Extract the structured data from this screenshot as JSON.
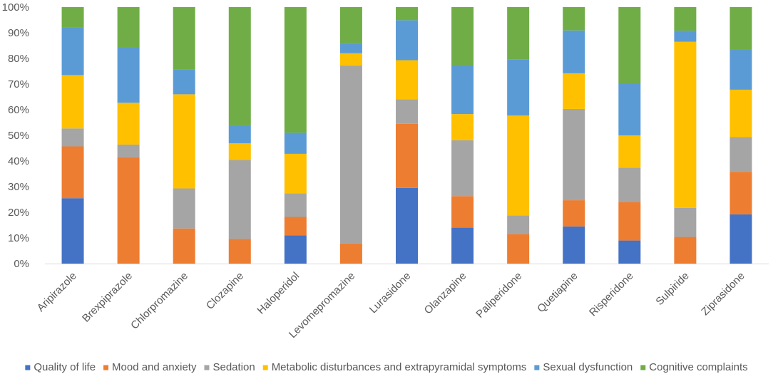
{
  "chart_data": {
    "type": "bar",
    "stacked": true,
    "title": "",
    "xlabel": "",
    "ylabel": "",
    "ylim": [
      0,
      100
    ],
    "yticks": [
      "0%",
      "10%",
      "20%",
      "30%",
      "40%",
      "50%",
      "60%",
      "70%",
      "80%",
      "90%",
      "100%"
    ],
    "grid": false,
    "legend_position": "bottom",
    "categories": [
      "Aripirazole",
      "Brexpiprazole",
      "Chlorpromazine",
      "Clozapine",
      "Haloperidol",
      "Levomepromazine",
      "Lurasidone",
      "Olanzapine",
      "Paliperidone",
      "Quetiapine",
      "Risperidone",
      "Sulpiride",
      "Ziprasidone"
    ],
    "series": [
      {
        "name": "Quality of life",
        "color": "#4472C4",
        "values": [
          25.5,
          0,
          0,
          0,
          11,
          0,
          29.5,
          14,
          0,
          14.5,
          9,
          0,
          19.2
        ]
      },
      {
        "name": "Mood and anxiety",
        "color": "#ED7D31",
        "values": [
          20.2,
          41.5,
          13.7,
          9.6,
          7.2,
          7.8,
          25,
          12.3,
          11.5,
          10.2,
          15,
          10.4,
          16.6
        ]
      },
      {
        "name": "Sedation",
        "color": "#A5A5A5",
        "values": [
          7,
          4.9,
          15.6,
          30.8,
          9.2,
          69.4,
          9.6,
          21.8,
          7.3,
          35.6,
          13.4,
          11.3,
          13.5
        ]
      },
      {
        "name": "Metabolic disturbances and extrapyramidal symptoms",
        "color": "#FFC000",
        "values": [
          20.8,
          16.3,
          36.7,
          6.5,
          15.4,
          4.8,
          15.2,
          10.2,
          38.9,
          13.9,
          12.6,
          64.8,
          18.5
        ]
      },
      {
        "name": "Sexual dysfunction",
        "color": "#5B9BD5",
        "values": [
          18.7,
          21.6,
          9.8,
          7,
          8.2,
          4,
          15.6,
          19.2,
          21.8,
          16.7,
          20,
          4.3,
          15.8
        ]
      },
      {
        "name": "Cognitive complaints",
        "color": "#70AD47",
        "values": [
          7.8,
          15.7,
          24.2,
          46.1,
          49,
          14,
          5.1,
          22.5,
          20.5,
          9.1,
          30,
          9.2,
          16.4
        ]
      }
    ]
  }
}
